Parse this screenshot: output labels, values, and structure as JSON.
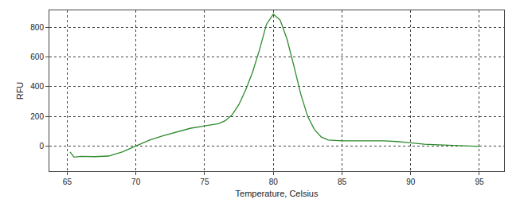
{
  "chart_data": {
    "type": "line",
    "x_label": "Temperature, Celsius",
    "y_label": "RFU",
    "x": [
      65.2,
      65.5,
      66,
      67,
      68,
      68.5,
      69,
      69.5,
      70,
      70.5,
      71,
      72,
      73,
      74,
      75,
      76,
      76.5,
      77,
      77.5,
      78,
      78.5,
      79,
      79.5,
      80,
      80.5,
      81,
      81.5,
      82,
      82.5,
      83,
      83.5,
      84,
      85,
      86,
      87,
      88,
      89,
      90,
      91,
      92,
      93,
      94,
      95
    ],
    "values": [
      -40,
      -75,
      -70,
      -72,
      -68,
      -55,
      -40,
      -20,
      0,
      20,
      40,
      70,
      95,
      120,
      135,
      150,
      170,
      210,
      280,
      380,
      500,
      650,
      820,
      890,
      850,
      720,
      540,
      350,
      200,
      110,
      60,
      40,
      35,
      35,
      35,
      35,
      30,
      20,
      12,
      8,
      5,
      3,
      -3
    ],
    "color": "#2e8b2e",
    "xlim": [
      63.7,
      96.8
    ],
    "xticks": [
      65,
      70,
      75,
      80,
      85,
      90,
      95
    ],
    "ylim": [
      -170,
      915
    ],
    "yticks": [
      0,
      200,
      400,
      600,
      800
    ],
    "grid": true
  }
}
